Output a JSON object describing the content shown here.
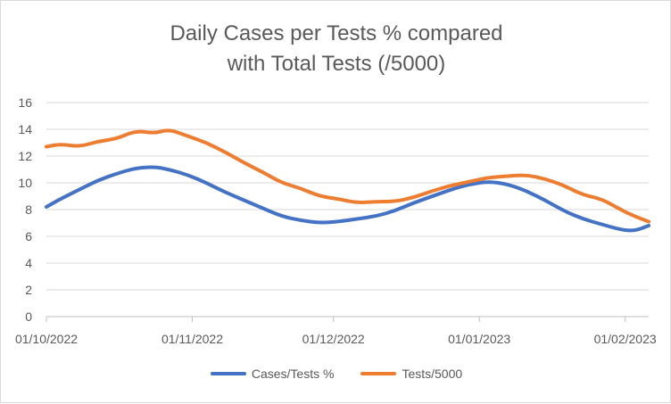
{
  "chart_data": {
    "type": "line",
    "title_line1": "Daily Cases per Tests % compared",
    "title_line2": "with Total Tests (/5000)",
    "xlabel": "",
    "ylabel": "",
    "ylim": [
      0,
      16
    ],
    "yticks": [
      "0",
      "2",
      "4",
      "6",
      "8",
      "10",
      "12",
      "14",
      "16"
    ],
    "x_start": "01/10/2022",
    "x_end": "06/02/2023",
    "xtick_labels": [
      "01/10/2022",
      "01/11/2022",
      "01/12/2022",
      "01/01/2023",
      "01/02/2023"
    ],
    "grid": "horizontal",
    "legend_position": "bottom",
    "series": [
      {
        "name": "Cases/Tests %",
        "color": "#4472C4",
        "points": [
          [
            "01/10/2022",
            8.2
          ],
          [
            "04/10/2022",
            8.8
          ],
          [
            "08/10/2022",
            9.5
          ],
          [
            "12/10/2022",
            10.2
          ],
          [
            "16/10/2022",
            10.7
          ],
          [
            "20/10/2022",
            11.1
          ],
          [
            "24/10/2022",
            11.2
          ],
          [
            "27/10/2022",
            11.0
          ],
          [
            "31/10/2022",
            10.6
          ],
          [
            "04/11/2022",
            10.0
          ],
          [
            "08/11/2022",
            9.3
          ],
          [
            "12/11/2022",
            8.7
          ],
          [
            "16/11/2022",
            8.1
          ],
          [
            "20/11/2022",
            7.5
          ],
          [
            "24/11/2022",
            7.2
          ],
          [
            "28/11/2022",
            7.0
          ],
          [
            "02/12/2022",
            7.1
          ],
          [
            "06/12/2022",
            7.3
          ],
          [
            "10/12/2022",
            7.5
          ],
          [
            "14/12/2022",
            7.9
          ],
          [
            "18/12/2022",
            8.5
          ],
          [
            "22/12/2022",
            9.0
          ],
          [
            "26/12/2022",
            9.5
          ],
          [
            "30/12/2022",
            9.9
          ],
          [
            "03/01/2023",
            10.1
          ],
          [
            "07/01/2023",
            9.9
          ],
          [
            "11/01/2023",
            9.4
          ],
          [
            "15/01/2023",
            8.7
          ],
          [
            "19/01/2023",
            7.9
          ],
          [
            "23/01/2023",
            7.3
          ],
          [
            "27/01/2023",
            6.9
          ],
          [
            "31/01/2023",
            6.5
          ],
          [
            "03/02/2023",
            6.4
          ],
          [
            "06/02/2023",
            6.8
          ]
        ]
      },
      {
        "name": "Tests/5000",
        "color": "#ED7D31",
        "points": [
          [
            "01/10/2022",
            12.7
          ],
          [
            "04/10/2022",
            12.9
          ],
          [
            "08/10/2022",
            12.7
          ],
          [
            "12/10/2022",
            13.1
          ],
          [
            "16/10/2022",
            13.3
          ],
          [
            "20/10/2022",
            13.9
          ],
          [
            "24/10/2022",
            13.7
          ],
          [
            "27/10/2022",
            14.0
          ],
          [
            "31/10/2022",
            13.5
          ],
          [
            "04/11/2022",
            13.0
          ],
          [
            "08/11/2022",
            12.3
          ],
          [
            "12/11/2022",
            11.5
          ],
          [
            "16/11/2022",
            10.8
          ],
          [
            "20/11/2022",
            10.0
          ],
          [
            "24/11/2022",
            9.6
          ],
          [
            "28/11/2022",
            9.0
          ],
          [
            "02/12/2022",
            8.8
          ],
          [
            "06/12/2022",
            8.5
          ],
          [
            "10/12/2022",
            8.6
          ],
          [
            "14/12/2022",
            8.6
          ],
          [
            "18/12/2022",
            8.9
          ],
          [
            "22/12/2022",
            9.4
          ],
          [
            "26/12/2022",
            9.8
          ],
          [
            "30/12/2022",
            10.1
          ],
          [
            "03/01/2023",
            10.4
          ],
          [
            "07/01/2023",
            10.5
          ],
          [
            "11/01/2023",
            10.6
          ],
          [
            "15/01/2023",
            10.3
          ],
          [
            "19/01/2023",
            9.8
          ],
          [
            "23/01/2023",
            9.1
          ],
          [
            "27/01/2023",
            8.8
          ],
          [
            "31/01/2023",
            8.0
          ],
          [
            "03/02/2023",
            7.5
          ],
          [
            "06/02/2023",
            7.1
          ]
        ]
      }
    ]
  }
}
